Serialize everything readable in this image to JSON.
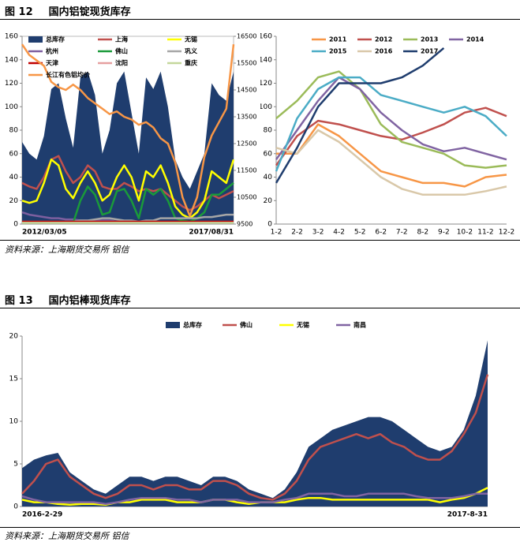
{
  "figures": [
    {
      "label": "图 12",
      "caption": "国内铝锭现货库存",
      "source": "资料来源：上海期货交易所 铝信"
    },
    {
      "label": "图 13",
      "caption": "国内铝棒现货库存",
      "source": "资料来源：上海期货交易所 铝信"
    }
  ],
  "chart_data": [
    {
      "type": "line",
      "categories": [
        "2012/03/05",
        null,
        null,
        null,
        null,
        null,
        null,
        null,
        null,
        null,
        null,
        null,
        null,
        null,
        null,
        null,
        null,
        null,
        null,
        null,
        null,
        null,
        null,
        null,
        null,
        null,
        null,
        null,
        null,
        "2017/08/31"
      ],
      "ylim": [
        0,
        160
      ],
      "yticks": [
        0,
        20,
        40,
        60,
        80,
        100,
        120,
        140,
        160
      ],
      "y2lim": [
        9500,
        16500
      ],
      "y2ticks": [
        9500,
        10500,
        11500,
        12500,
        13500,
        14500,
        15500,
        16500
      ],
      "series": [
        {
          "name": "总库存",
          "type": "area",
          "color": "#1f3d6e",
          "values": [
            70,
            60,
            55,
            75,
            115,
            120,
            90,
            65,
            125,
            130,
            110,
            60,
            80,
            120,
            130,
            95,
            60,
            125,
            115,
            130,
            100,
            55,
            40,
            30,
            45,
            60,
            120,
            110,
            105,
            130
          ]
        },
        {
          "name": "上海",
          "color": "#c0504d",
          "values": [
            35,
            32,
            30,
            40,
            55,
            58,
            45,
            35,
            40,
            50,
            45,
            32,
            30,
            30,
            35,
            32,
            28,
            30,
            28,
            30,
            25,
            20,
            15,
            12,
            15,
            20,
            25,
            22,
            25,
            28
          ]
        },
        {
          "name": "无锡",
          "color": "#ffff00",
          "values": [
            20,
            18,
            20,
            35,
            55,
            50,
            30,
            22,
            35,
            45,
            35,
            20,
            25,
            40,
            50,
            40,
            20,
            45,
            40,
            50,
            35,
            15,
            8,
            5,
            10,
            20,
            45,
            40,
            35,
            55
          ]
        },
        {
          "name": "杭州",
          "color": "#7d5f9f",
          "values": [
            10,
            8,
            7,
            6,
            5,
            5,
            4,
            4,
            3,
            3,
            3,
            3,
            3,
            2,
            2,
            2,
            2,
            2,
            2,
            2,
            2,
            2,
            2,
            2,
            2,
            2,
            2,
            2,
            2,
            2
          ]
        },
        {
          "name": "佛山",
          "color": "#1a9a3a",
          "values": [
            1,
            1,
            1,
            1,
            1,
            1,
            1,
            1,
            20,
            32,
            25,
            8,
            10,
            28,
            30,
            20,
            5,
            30,
            25,
            30,
            20,
            5,
            3,
            2,
            5,
            10,
            25,
            25,
            30,
            35
          ]
        },
        {
          "name": "巩义",
          "color": "#a6a6a6",
          "values": [
            2,
            2,
            2,
            2,
            2,
            2,
            2,
            2,
            3,
            3,
            4,
            5,
            5,
            4,
            3,
            3,
            2,
            3,
            3,
            5,
            5,
            5,
            5,
            5,
            5,
            6,
            6,
            7,
            8,
            8
          ]
        },
        {
          "name": "天津",
          "color": "#c00000",
          "values": [
            2,
            2,
            2,
            2,
            2,
            2,
            2,
            2,
            2,
            2,
            2,
            2,
            2,
            2,
            2,
            2,
            2,
            2,
            2,
            2,
            2,
            2,
            2,
            2,
            2,
            2,
            2,
            2,
            2,
            2
          ]
        },
        {
          "name": "沈阳",
          "color": "#e6a0a0",
          "values": [
            1,
            1,
            1,
            1,
            1,
            1,
            1,
            1,
            1,
            1,
            1,
            1,
            1,
            1,
            1,
            1,
            1,
            1,
            1,
            1,
            1,
            1,
            1,
            1,
            1,
            1,
            1,
            1,
            1,
            1
          ]
        },
        {
          "name": "重庆",
          "color": "#c4d79b",
          "values": [
            1,
            1,
            1,
            1,
            1,
            1,
            1,
            1,
            1,
            1,
            1,
            1,
            1,
            1,
            1,
            1,
            1,
            1,
            1,
            1,
            1,
            1,
            1,
            1,
            1,
            1,
            1,
            1,
            1,
            1
          ]
        },
        {
          "name": "长江有色铝均价",
          "color": "#f79646",
          "axis": "y2",
          "values": [
            16200,
            15800,
            15600,
            15400,
            14800,
            14600,
            14500,
            14700,
            14500,
            14200,
            14000,
            13800,
            13600,
            13700,
            13500,
            13400,
            13200,
            13300,
            13100,
            12700,
            12500,
            11800,
            10500,
            9800,
            10500,
            12000,
            12800,
            13300,
            13800,
            16200
          ]
        }
      ]
    },
    {
      "type": "line",
      "categories": [
        "1-2",
        "2-2",
        "3-2",
        "4-2",
        "5-2",
        "6-2",
        "7-2",
        "8-2",
        "9-2",
        "10-2",
        "11-2",
        "12-2"
      ],
      "ylim": [
        0,
        160
      ],
      "yticks": [
        0,
        20,
        40,
        60,
        80,
        100,
        120,
        140,
        160
      ],
      "series": [
        {
          "name": "2011",
          "color": "#f79646",
          "values": [
            60,
            60,
            85,
            75,
            60,
            45,
            40,
            35,
            35,
            32,
            40,
            42
          ]
        },
        {
          "name": "2012",
          "color": "#c0504d",
          "values": [
            50,
            75,
            88,
            85,
            80,
            75,
            72,
            78,
            85,
            95,
            99,
            92
          ]
        },
        {
          "name": "2013",
          "color": "#9bbb59",
          "values": [
            90,
            105,
            125,
            130,
            115,
            85,
            70,
            65,
            60,
            50,
            48,
            50
          ]
        },
        {
          "name": "2014",
          "color": "#8064a2",
          "values": [
            55,
            80,
            105,
            125,
            115,
            95,
            80,
            68,
            62,
            65,
            60,
            55
          ]
        },
        {
          "name": "2015",
          "color": "#4bacc6",
          "values": [
            45,
            90,
            115,
            125,
            125,
            110,
            105,
            100,
            95,
            100,
            92,
            75
          ]
        },
        {
          "name": "2016",
          "color": "#d9c8a9",
          "values": [
            65,
            60,
            80,
            70,
            55,
            40,
            30,
            25,
            25,
            25,
            28,
            32
          ]
        },
        {
          "name": "2017",
          "color": "#1f3d6e",
          "values": [
            35,
            65,
            100,
            120,
            120,
            120,
            125,
            135,
            150,
            null,
            null,
            null
          ]
        }
      ]
    },
    {
      "type": "line",
      "categories": [
        "2016-2-29",
        null,
        null,
        null,
        null,
        null,
        null,
        null,
        null,
        null,
        null,
        null,
        null,
        null,
        null,
        null,
        null,
        null,
        null,
        null,
        null,
        null,
        null,
        null,
        null,
        null,
        null,
        null,
        null,
        null,
        null,
        null,
        null,
        null,
        null,
        null,
        null,
        null,
        null,
        "2017-8-31"
      ],
      "ylim": [
        0,
        20
      ],
      "yticks": [
        0,
        5,
        10,
        15,
        20
      ],
      "series": [
        {
          "name": "总库存",
          "type": "area",
          "color": "#1f3d6e",
          "values": [
            4.5,
            5.5,
            6,
            6.3,
            4,
            3,
            2,
            1.5,
            2.5,
            3.5,
            3.5,
            3,
            3.5,
            3.5,
            3,
            2.5,
            3.5,
            3.5,
            3,
            2,
            1.5,
            1,
            2,
            4,
            7,
            8,
            9,
            9.5,
            10,
            10.5,
            10.5,
            10,
            9,
            8,
            7,
            6.5,
            7,
            9,
            13,
            19.5
          ]
        },
        {
          "name": "佛山",
          "color": "#c0504d",
          "values": [
            1.5,
            3,
            5,
            5.5,
            3.5,
            2.5,
            1.5,
            1,
            1.5,
            2.5,
            2.5,
            2,
            2.5,
            2.5,
            2,
            2,
            3,
            3,
            2.5,
            1.5,
            1,
            0.8,
            1.5,
            3,
            5.5,
            7,
            7.5,
            8,
            8.5,
            8,
            8.5,
            7.5,
            7,
            6,
            5.5,
            5.5,
            6.5,
            8.5,
            11,
            15.5
          ]
        },
        {
          "name": "无锡",
          "color": "#ffff00",
          "values": [
            0.8,
            0.5,
            0.5,
            0.3,
            0.2,
            0.3,
            0.3,
            0.2,
            0.5,
            0.5,
            0.8,
            0.8,
            0.8,
            0.5,
            0.5,
            0.5,
            0.8,
            0.8,
            0.5,
            0.3,
            0.5,
            0.5,
            0.5,
            0.8,
            1,
            1,
            0.8,
            0.8,
            0.8,
            0.8,
            0.8,
            0.8,
            0.8,
            0.8,
            0.8,
            0.5,
            0.8,
            1,
            1.5,
            2.2
          ]
        },
        {
          "name": "南昌",
          "color": "#8064a2",
          "values": [
            1.2,
            0.8,
            0.5,
            0.5,
            0.5,
            0.5,
            0.5,
            0.3,
            0.5,
            0.8,
            1,
            1,
            1,
            0.8,
            0.8,
            0.5,
            0.8,
            0.8,
            0.8,
            0.5,
            0.5,
            0.5,
            0.8,
            1,
            1.5,
            1.5,
            1.5,
            1.2,
            1.2,
            1.5,
            1.5,
            1.5,
            1.5,
            1.2,
            1,
            1,
            1,
            1.2,
            1.5,
            1.5
          ]
        }
      ]
    }
  ]
}
